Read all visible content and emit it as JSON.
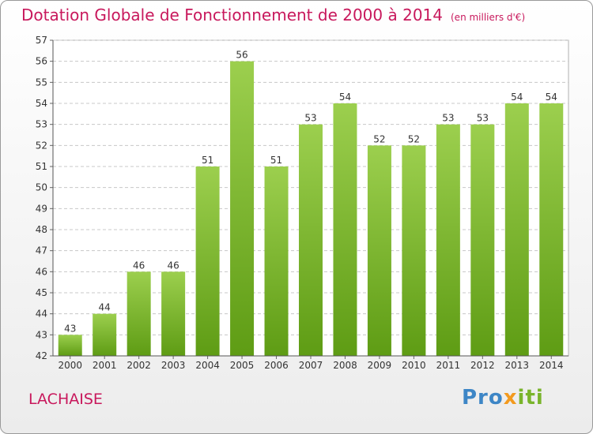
{
  "title": "Dotation Globale de Fonctionnement de 2000 à 2014",
  "subtitle": "(en milliers d'€)",
  "commune": "LACHAISE",
  "logo": {
    "part1": "Pro",
    "part2": "x",
    "part3": "iti"
  },
  "colors": {
    "title": "#c8185c",
    "bar_top": "#9ccf4e",
    "bar_bottom": "#5e9c14",
    "grid": "#c8c8c8"
  },
  "chart_data": {
    "type": "bar",
    "title": "Dotation Globale de Fonctionnement de 2000 à 2014",
    "subtitle": "(en milliers d'€)",
    "xlabel": "",
    "ylabel": "",
    "categories": [
      "2000",
      "2001",
      "2002",
      "2003",
      "2004",
      "2005",
      "2006",
      "2007",
      "2008",
      "2009",
      "2010",
      "2011",
      "2012",
      "2013",
      "2014"
    ],
    "values": [
      43,
      44,
      46,
      46,
      51,
      56,
      51,
      53,
      54,
      52,
      52,
      53,
      53,
      54,
      54
    ],
    "ylim": [
      42,
      57
    ],
    "yticks": [
      42,
      43,
      44,
      45,
      46,
      47,
      48,
      49,
      50,
      51,
      52,
      53,
      54,
      55,
      56,
      57
    ],
    "grid": true,
    "data_labels": true
  }
}
